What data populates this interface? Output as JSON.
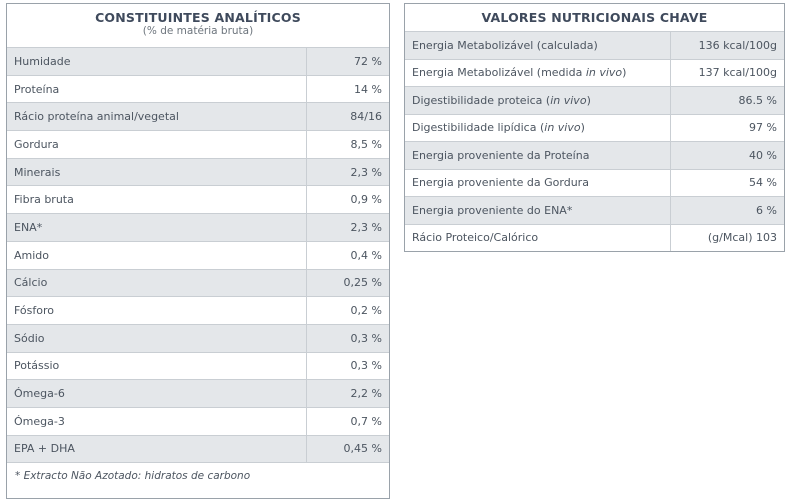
{
  "left": {
    "title": "CONSTITUINTES ANALÍTICOS",
    "subtitle": "(% de matéria bruta)",
    "rows": [
      {
        "label": "Humidade",
        "value": "72 %"
      },
      {
        "label": "Proteína",
        "value": "14 %"
      },
      {
        "label": "Rácio proteína animal/vegetal",
        "value": "84/16"
      },
      {
        "label": "Gordura",
        "value": "8,5 %"
      },
      {
        "label": "Minerais",
        "value": "2,3 %"
      },
      {
        "label": "Fibra bruta",
        "value": "0,9 %"
      },
      {
        "label": "ENA*",
        "value": "2,3 %"
      },
      {
        "label": "Amido",
        "value": "0,4 %"
      },
      {
        "label": "Cálcio",
        "value": "0,25 %"
      },
      {
        "label": "Fósforo",
        "value": "0,2 %"
      },
      {
        "label": "Sódio",
        "value": "0,3 %"
      },
      {
        "label": "Potássio",
        "value": "0,3 %"
      },
      {
        "label": "Ómega-6",
        "value": "2,2 %"
      },
      {
        "label": "Ómega-3",
        "value": "0,7 %"
      },
      {
        "label": "EPA + DHA",
        "value": "0,45 %"
      }
    ],
    "footnote": "* Extracto Não Azotado: hidratos de carbono"
  },
  "right": {
    "title": "VALORES NUTRICIONAIS CHAVE",
    "rows": [
      {
        "label": "Energia Metabolizável (calculada)",
        "label_italic": "",
        "label_end": "",
        "value": "136 kcal/100g"
      },
      {
        "label": "Energia Metabolizável (medida ",
        "label_italic": "in vivo",
        "label_end": ")",
        "value": "137 kcal/100g"
      },
      {
        "label": "Digestibilidade proteica (",
        "label_italic": "in vivo",
        "label_end": ")",
        "value": "86.5 %"
      },
      {
        "label": "Digestibilidade lipídica (",
        "label_italic": "in vivo",
        "label_end": ")",
        "value": "97 %"
      },
      {
        "label": "Energia proveniente da Proteína",
        "label_italic": "",
        "label_end": "",
        "value": "40 %"
      },
      {
        "label": "Energia proveniente da Gordura",
        "label_italic": "",
        "label_end": "",
        "value": "54 %"
      },
      {
        "label": "Energia proveniente do ENA*",
        "label_italic": "",
        "label_end": "",
        "value": "6 %"
      },
      {
        "label": "Rácio Proteico/Calórico",
        "label_italic": "",
        "label_end": "",
        "value": "(g/Mcal) 103"
      }
    ]
  }
}
